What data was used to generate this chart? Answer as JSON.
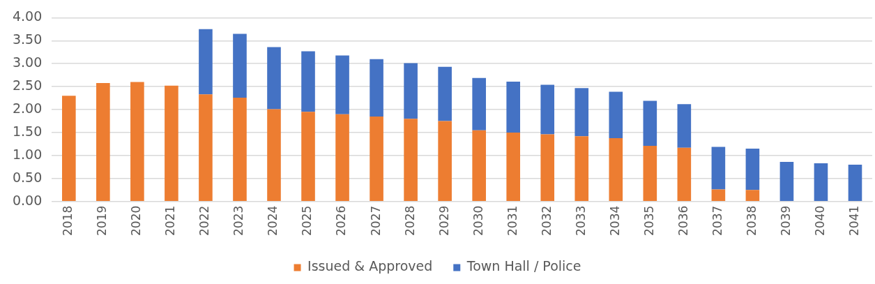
{
  "chart_data": {
    "type": "bar",
    "stacked": true,
    "categories": [
      "2018",
      "2019",
      "2020",
      "2021",
      "2022",
      "2023",
      "2024",
      "2025",
      "2026",
      "2027",
      "2028",
      "2029",
      "2030",
      "2031",
      "2032",
      "2033",
      "2034",
      "2035",
      "2036",
      "2037",
      "2038",
      "2039",
      "2040",
      "2041"
    ],
    "series": [
      {
        "name": "Issued & Approved",
        "color": "#ed7d31",
        "values": [
          2.3,
          2.58,
          2.6,
          2.52,
          2.33,
          2.26,
          2.01,
          1.95,
          1.9,
          1.85,
          1.8,
          1.75,
          1.55,
          1.5,
          1.46,
          1.42,
          1.38,
          1.21,
          1.17,
          0.26,
          0.25,
          null,
          null,
          null
        ]
      },
      {
        "name": "Town Hall / Police",
        "color": "#4472c4",
        "values": [
          null,
          null,
          null,
          null,
          1.42,
          1.39,
          1.35,
          1.32,
          1.28,
          1.25,
          1.21,
          1.18,
          1.14,
          1.11,
          1.08,
          1.05,
          1.01,
          0.98,
          0.95,
          0.93,
          0.9,
          0.86,
          0.83,
          0.8
        ]
      }
    ],
    "ylim": [
      0,
      4
    ],
    "yticks": [
      {
        "value": 0,
        "label": "0.00"
      },
      {
        "value": 0.5,
        "label": "0.50"
      },
      {
        "value": 1,
        "label": "1.00"
      },
      {
        "value": 1.5,
        "label": "1.50"
      },
      {
        "value": 2,
        "label": "2.00"
      },
      {
        "value": 2.5,
        "label": "2.50"
      },
      {
        "value": 3,
        "label": "3.00"
      },
      {
        "value": 3.5,
        "label": "3.50"
      },
      {
        "value": 4,
        "label": "4.00"
      }
    ],
    "grid": "y",
    "legend": "bottom"
  }
}
